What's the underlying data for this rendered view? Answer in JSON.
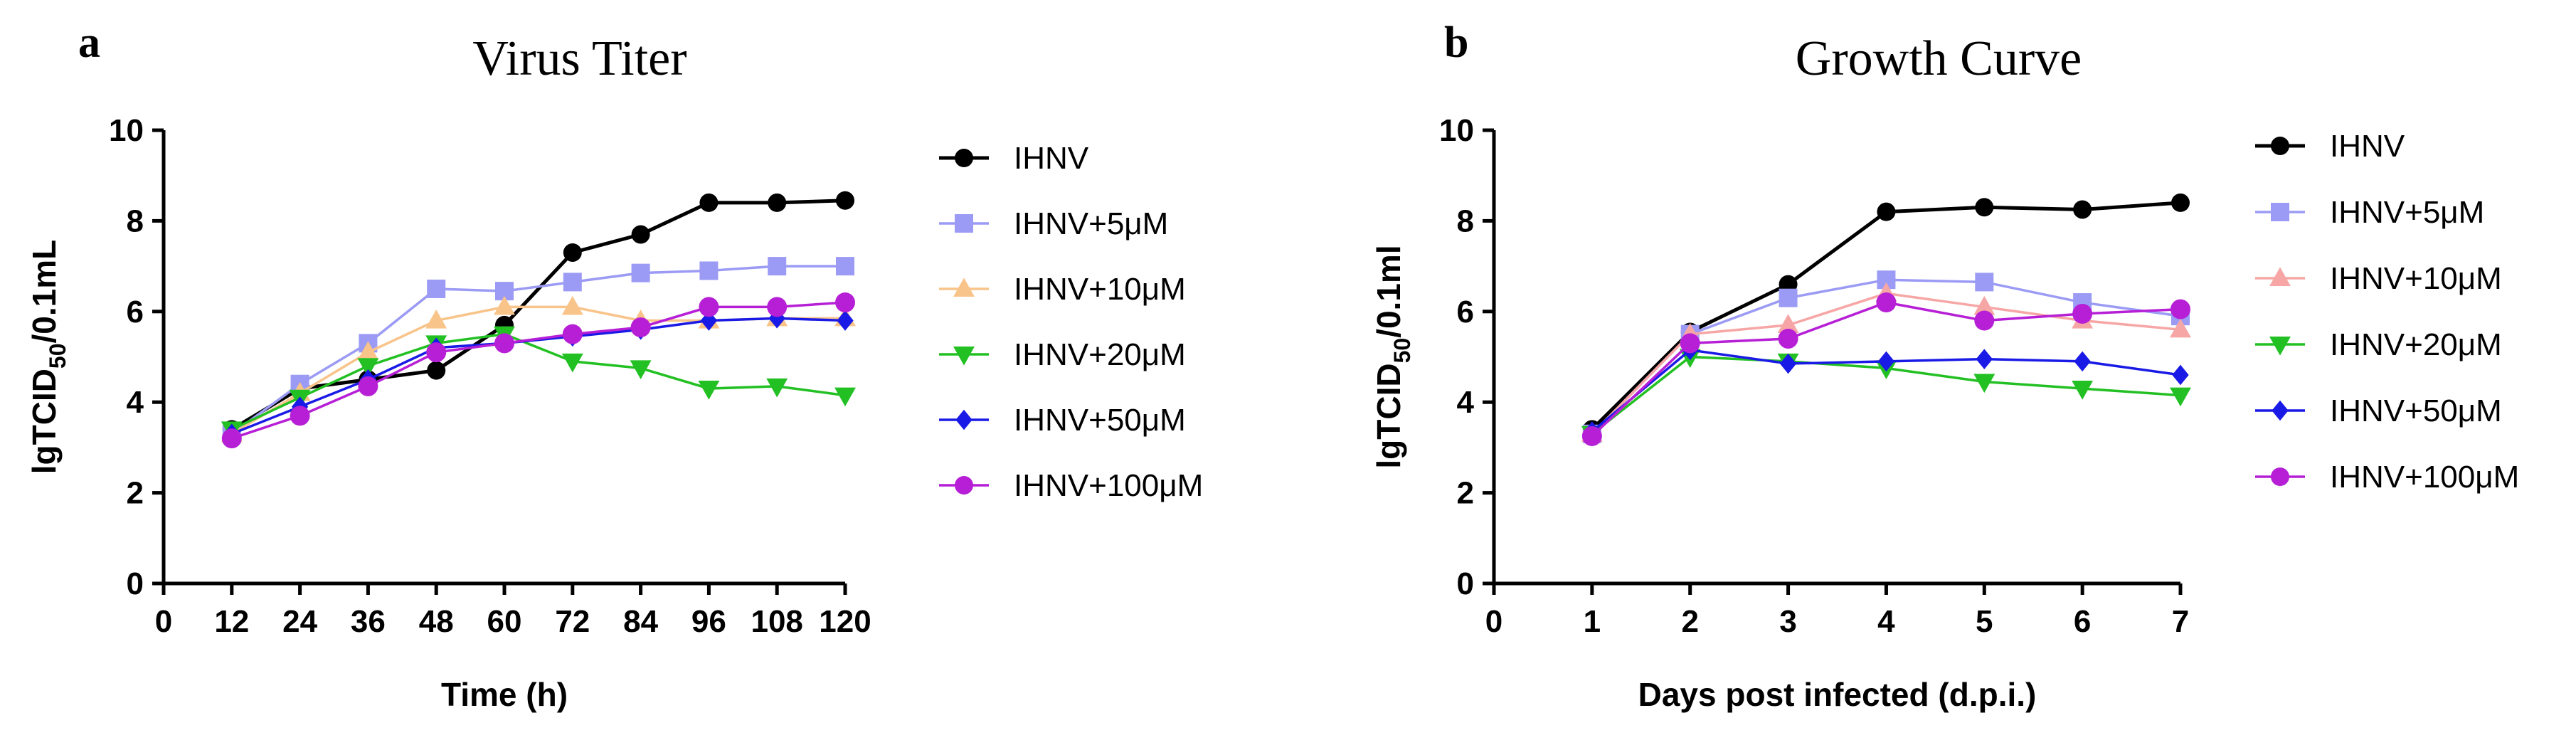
{
  "chart_data": [
    {
      "type": "line",
      "panel_letter": "a",
      "title": "Virus Titer",
      "xlabel": "Time (h)",
      "ylabel_main": "lgTCID",
      "ylabel_sub": "50",
      "ylabel_unit": "/0.1mL",
      "xlim": [
        0,
        120
      ],
      "ylim": [
        0,
        10
      ],
      "xticks": [
        0,
        12,
        24,
        36,
        48,
        60,
        72,
        84,
        96,
        108,
        120
      ],
      "yticks": [
        0,
        2,
        4,
        6,
        8,
        10
      ],
      "legend_position": "right",
      "series": [
        {
          "name": "IHNV",
          "color": "#000000",
          "marker": "circle",
          "x": [
            12,
            24,
            36,
            48,
            60,
            72,
            84,
            96,
            108,
            120
          ],
          "values": [
            3.4,
            4.3,
            4.5,
            4.7,
            5.7,
            7.3,
            7.7,
            8.4,
            8.4,
            8.45
          ]
        },
        {
          "name": "IHNV+5μM",
          "color": "#9b9bf5",
          "marker": "square",
          "x": [
            12,
            24,
            36,
            48,
            60,
            72,
            84,
            96,
            108,
            120
          ],
          "values": [
            3.3,
            4.4,
            5.3,
            6.5,
            6.45,
            6.65,
            6.85,
            6.9,
            7.0,
            7.0
          ]
        },
        {
          "name": "IHNV+10μM",
          "color": "#f9c48a",
          "marker": "triangle-up",
          "x": [
            12,
            24,
            36,
            48,
            60,
            72,
            84,
            96,
            108,
            120
          ],
          "values": [
            3.3,
            4.2,
            5.1,
            5.8,
            6.1,
            6.1,
            5.8,
            5.8,
            5.85,
            5.85
          ]
        },
        {
          "name": "IHNV+20μM",
          "color": "#22c022",
          "marker": "triangle-down",
          "x": [
            12,
            24,
            36,
            48,
            60,
            72,
            84,
            96,
            108,
            120
          ],
          "values": [
            3.4,
            4.1,
            4.8,
            5.3,
            5.5,
            4.9,
            4.75,
            4.3,
            4.35,
            4.15
          ]
        },
        {
          "name": "IHNV+50μM",
          "color": "#1a1ae6",
          "marker": "diamond",
          "x": [
            12,
            24,
            36,
            48,
            60,
            72,
            84,
            96,
            108,
            120
          ],
          "values": [
            3.3,
            3.9,
            4.5,
            5.2,
            5.3,
            5.45,
            5.6,
            5.8,
            5.85,
            5.8
          ]
        },
        {
          "name": "IHNV+100μM",
          "color": "#b61fd6",
          "marker": "circle",
          "x": [
            12,
            24,
            36,
            48,
            60,
            72,
            84,
            96,
            108,
            120
          ],
          "values": [
            3.2,
            3.7,
            4.35,
            5.1,
            5.3,
            5.5,
            5.65,
            6.1,
            6.1,
            6.2
          ]
        }
      ]
    },
    {
      "type": "line",
      "panel_letter": "b",
      "title": "Growth Curve",
      "xlabel": "Days post infected (d.p.i.)",
      "ylabel_main": "lgTCID",
      "ylabel_sub": "50",
      "ylabel_unit": "/0.1ml",
      "xlim": [
        0,
        7
      ],
      "ylim": [
        0,
        10
      ],
      "xticks": [
        0,
        1,
        2,
        3,
        4,
        5,
        6,
        7
      ],
      "yticks": [
        0,
        2,
        4,
        6,
        8,
        10
      ],
      "legend_position": "right",
      "series": [
        {
          "name": "IHNV",
          "color": "#000000",
          "marker": "circle",
          "x": [
            1,
            2,
            3,
            4,
            5,
            6,
            7
          ],
          "values": [
            3.4,
            5.55,
            6.6,
            8.2,
            8.3,
            8.25,
            8.4
          ]
        },
        {
          "name": "IHNV+5μM",
          "color": "#9b9bf5",
          "marker": "square",
          "x": [
            1,
            2,
            3,
            4,
            5,
            6,
            7
          ],
          "values": [
            3.3,
            5.5,
            6.3,
            6.7,
            6.65,
            6.2,
            5.9
          ]
        },
        {
          "name": "IHNV+10μM",
          "color": "#f7a6a6",
          "marker": "triangle-up",
          "x": [
            1,
            2,
            3,
            4,
            5,
            6,
            7
          ],
          "values": [
            3.3,
            5.5,
            5.7,
            6.4,
            6.1,
            5.8,
            5.6
          ]
        },
        {
          "name": "IHNV+20μM",
          "color": "#22c022",
          "marker": "triangle-down",
          "x": [
            1,
            2,
            3,
            4,
            5,
            6,
            7
          ],
          "values": [
            3.3,
            5.0,
            4.9,
            4.75,
            4.45,
            4.3,
            4.15
          ]
        },
        {
          "name": "IHNV+50μM",
          "color": "#1a1ae6",
          "marker": "diamond",
          "x": [
            1,
            2,
            3,
            4,
            5,
            6,
            7
          ],
          "values": [
            3.35,
            5.15,
            4.85,
            4.9,
            4.95,
            4.9,
            4.6
          ]
        },
        {
          "name": "IHNV+100μM",
          "color": "#b61fd6",
          "marker": "circle",
          "x": [
            1,
            2,
            3,
            4,
            5,
            6,
            7
          ],
          "values": [
            3.25,
            5.3,
            5.4,
            6.2,
            5.8,
            5.95,
            6.05
          ]
        }
      ]
    }
  ]
}
